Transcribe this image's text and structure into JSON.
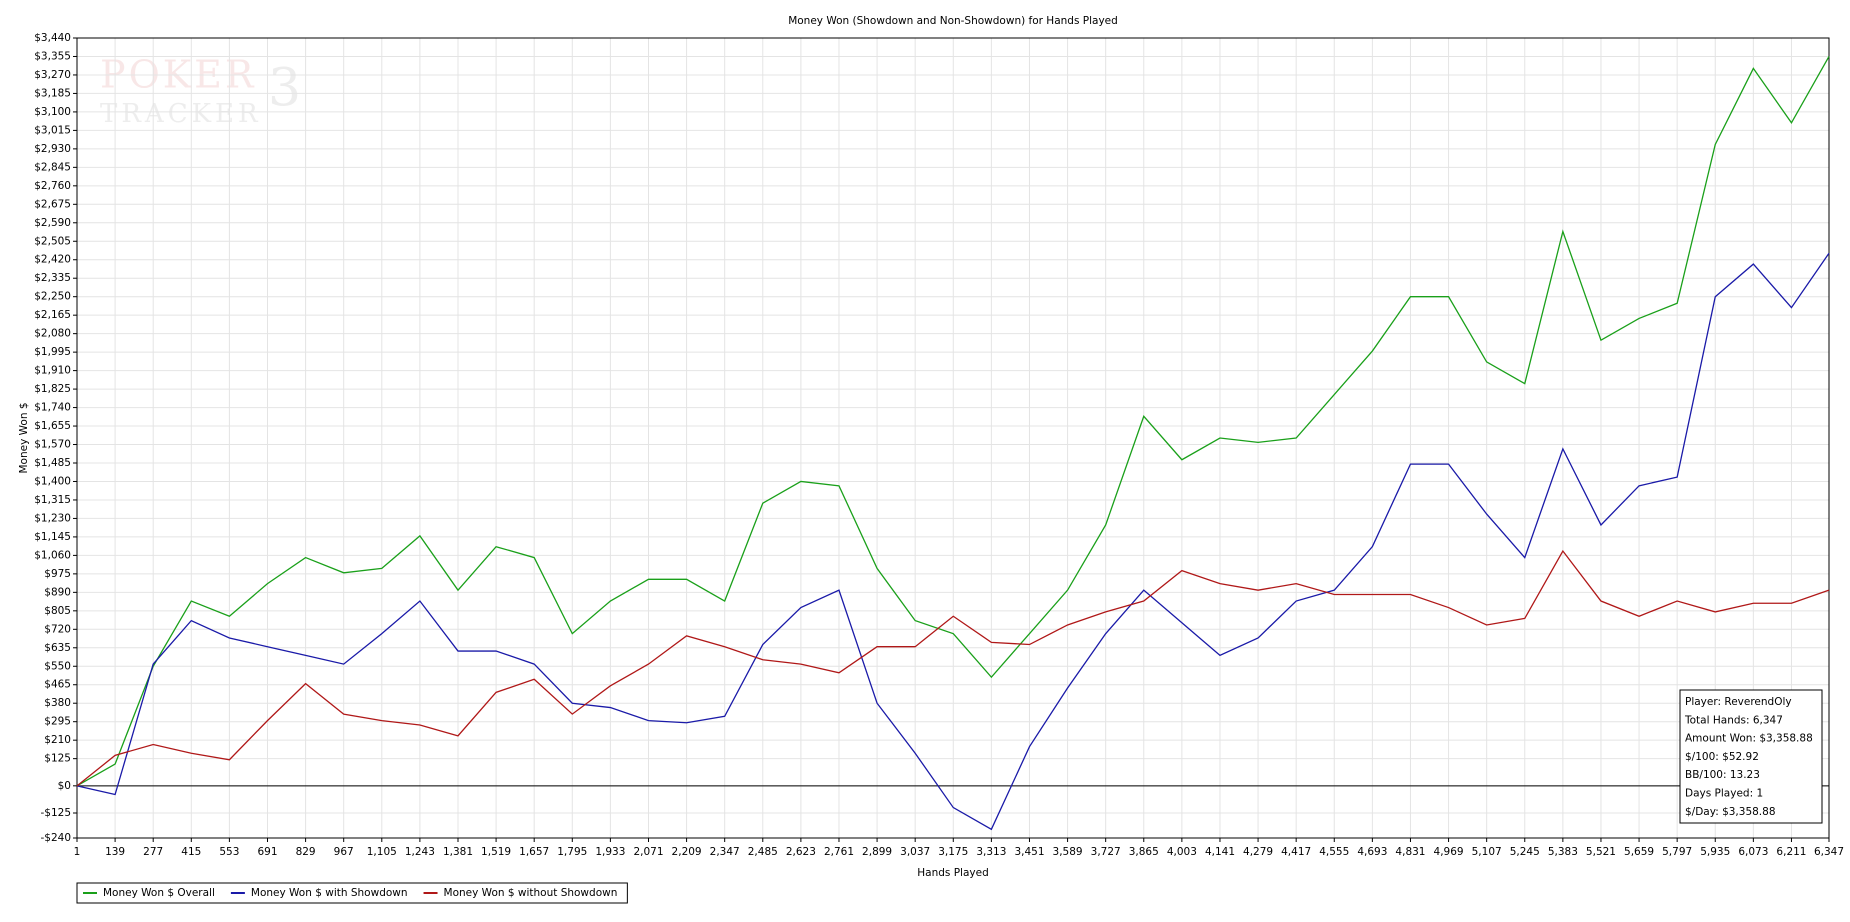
{
  "chart_data": {
    "type": "line",
    "title": "Money Won (Showdown and Non-Showdown) for Hands Played",
    "x_label": "Hands Played",
    "y_label": "Money Won $",
    "watermark": [
      "POKER",
      "TRACKER",
      "3"
    ],
    "info_box": [
      "Player: ReverendOly",
      "Total Hands: 6,347",
      "Amount Won: $3,358.88",
      "$/100: $52.92",
      "BB/100: 13.23",
      "Days Played: 1",
      "$/Day: $3,358.88"
    ],
    "grid": true,
    "legend": "bottom-left",
    "xlim": [
      1,
      6347
    ],
    "ylim": [
      -240,
      3440
    ],
    "xticks": [
      1,
      139,
      277,
      415,
      553,
      691,
      829,
      967,
      {
        "value": 1105,
        "label": "1,105"
      },
      {
        "value": 1243,
        "label": "1,243"
      },
      {
        "value": 1381,
        "label": "1,381"
      },
      {
        "value": 1519,
        "label": "1,519"
      },
      {
        "value": 1657,
        "label": "1,657"
      },
      {
        "value": 1795,
        "label": "1,795"
      },
      {
        "value": 1933,
        "label": "1,933"
      },
      {
        "value": 2071,
        "label": "2,071"
      },
      {
        "value": 2209,
        "label": "2,209"
      },
      {
        "value": 2347,
        "label": "2,347"
      },
      {
        "value": 2485,
        "label": "2,485"
      },
      {
        "value": 2623,
        "label": "2,623"
      },
      {
        "value": 2761,
        "label": "2,761"
      },
      {
        "value": 2899,
        "label": "2,899"
      },
      {
        "value": 3037,
        "label": "3,037"
      },
      {
        "value": 3175,
        "label": "3,175"
      },
      {
        "value": 3313,
        "label": "3,313"
      },
      {
        "value": 3451,
        "label": "3,451"
      },
      {
        "value": 3589,
        "label": "3,589"
      },
      {
        "value": 3727,
        "label": "3,727"
      },
      {
        "value": 3865,
        "label": "3,865"
      },
      {
        "value": 4003,
        "label": "4,003"
      },
      {
        "value": 4141,
        "label": "4,141"
      },
      {
        "value": 4279,
        "label": "4,279"
      },
      {
        "value": 4417,
        "label": "4,417"
      },
      {
        "value": 4555,
        "label": "4,555"
      },
      {
        "value": 4693,
        "label": "4,693"
      },
      {
        "value": 4831,
        "label": "4,831"
      },
      {
        "value": 4969,
        "label": "4,969"
      },
      {
        "value": 5107,
        "label": "5,107"
      },
      {
        "value": 5245,
        "label": "5,245"
      },
      {
        "value": 5383,
        "label": "5,383"
      },
      {
        "value": 5521,
        "label": "5,521"
      },
      {
        "value": 5659,
        "label": "5,659"
      },
      {
        "value": 5797,
        "label": "5,797"
      },
      {
        "value": 5935,
        "label": "5,935"
      },
      {
        "value": 6073,
        "label": "6,073"
      },
      {
        "value": 6211,
        "label": "6,211"
      },
      {
        "value": 6347,
        "label": "6,347"
      }
    ],
    "yticks": [
      {
        "value": -240,
        "label": "-$240"
      },
      {
        "value": -125,
        "label": "-$125"
      },
      {
        "value": 0,
        "label": "$0"
      },
      {
        "value": 125,
        "label": "$125"
      },
      {
        "value": 210,
        "label": "$210"
      },
      {
        "value": 295,
        "label": "$295"
      },
      {
        "value": 380,
        "label": "$380"
      },
      {
        "value": 465,
        "label": "$465"
      },
      {
        "value": 550,
        "label": "$550"
      },
      {
        "value": 635,
        "label": "$635"
      },
      {
        "value": 720,
        "label": "$720"
      },
      {
        "value": 805,
        "label": "$805"
      },
      {
        "value": 890,
        "label": "$890"
      },
      {
        "value": 975,
        "label": "$975"
      },
      {
        "value": 1060,
        "label": "$1,060"
      },
      {
        "value": 1145,
        "label": "$1,145"
      },
      {
        "value": 1230,
        "label": "$1,230"
      },
      {
        "value": 1315,
        "label": "$1,315"
      },
      {
        "value": 1400,
        "label": "$1,400"
      },
      {
        "value": 1485,
        "label": "$1,485"
      },
      {
        "value": 1570,
        "label": "$1,570"
      },
      {
        "value": 1655,
        "label": "$1,655"
      },
      {
        "value": 1740,
        "label": "$1,740"
      },
      {
        "value": 1825,
        "label": "$1,825"
      },
      {
        "value": 1910,
        "label": "$1,910"
      },
      {
        "value": 1995,
        "label": "$1,995"
      },
      {
        "value": 2080,
        "label": "$2,080"
      },
      {
        "value": 2165,
        "label": "$2,165"
      },
      {
        "value": 2250,
        "label": "$2,250"
      },
      {
        "value": 2335,
        "label": "$2,335"
      },
      {
        "value": 2420,
        "label": "$2,420"
      },
      {
        "value": 2505,
        "label": "$2,505"
      },
      {
        "value": 2590,
        "label": "$2,590"
      },
      {
        "value": 2675,
        "label": "$2,675"
      },
      {
        "value": 2760,
        "label": "$2,760"
      },
      {
        "value": 2845,
        "label": "$2,845"
      },
      {
        "value": 2930,
        "label": "$2,930"
      },
      {
        "value": 3015,
        "label": "$3,015"
      },
      {
        "value": 3100,
        "label": "$3,100"
      },
      {
        "value": 3185,
        "label": "$3,185"
      },
      {
        "value": 3270,
        "label": "$3,270"
      },
      {
        "value": 3355,
        "label": "$3,355"
      },
      {
        "value": 3440,
        "label": "$3,440"
      }
    ],
    "x": [
      1,
      139,
      277,
      415,
      553,
      691,
      829,
      967,
      1105,
      1243,
      1381,
      1519,
      1657,
      1795,
      1933,
      2071,
      2209,
      2347,
      2485,
      2623,
      2761,
      2899,
      3037,
      3175,
      3313,
      3451,
      3589,
      3727,
      3865,
      4003,
      4141,
      4279,
      4417,
      4555,
      4693,
      4831,
      4969,
      5107,
      5245,
      5383,
      5521,
      5659,
      5797,
      5935,
      6073,
      6211,
      6347
    ],
    "series": [
      {
        "name": "Money Won $ Overall",
        "color": "#1aa01a",
        "values": [
          0,
          100,
          550,
          850,
          780,
          930,
          1050,
          980,
          1000,
          1150,
          900,
          1100,
          1050,
          700,
          850,
          950,
          950,
          850,
          1300,
          1400,
          1380,
          1000,
          760,
          700,
          500,
          700,
          900,
          1200,
          1700,
          1500,
          1600,
          1580,
          1600,
          1800,
          2000,
          2250,
          2250,
          1950,
          1850,
          2550,
          2050,
          2150,
          2220,
          2950,
          3300,
          3050,
          3355
        ]
      },
      {
        "name": "Money Won $ with Showdown",
        "color": "#1a1aa8",
        "values": [
          0,
          -40,
          560,
          760,
          680,
          640,
          600,
          560,
          700,
          850,
          620,
          620,
          560,
          380,
          360,
          300,
          290,
          320,
          650,
          820,
          900,
          380,
          150,
          -100,
          -200,
          180,
          450,
          700,
          900,
          750,
          600,
          680,
          850,
          900,
          1100,
          1480,
          1480,
          1250,
          1050,
          1550,
          1200,
          1380,
          1420,
          2250,
          2400,
          2200,
          2450
        ]
      },
      {
        "name": "Money Won $ without Showdown",
        "color": "#b01818",
        "values": [
          0,
          140,
          190,
          150,
          120,
          300,
          470,
          330,
          300,
          280,
          230,
          430,
          490,
          330,
          460,
          560,
          690,
          640,
          580,
          560,
          520,
          640,
          640,
          780,
          660,
          650,
          740,
          800,
          850,
          990,
          930,
          900,
          930,
          880,
          880,
          880,
          820,
          740,
          770,
          1080,
          850,
          780,
          850,
          800,
          840,
          840,
          900
        ]
      }
    ]
  }
}
